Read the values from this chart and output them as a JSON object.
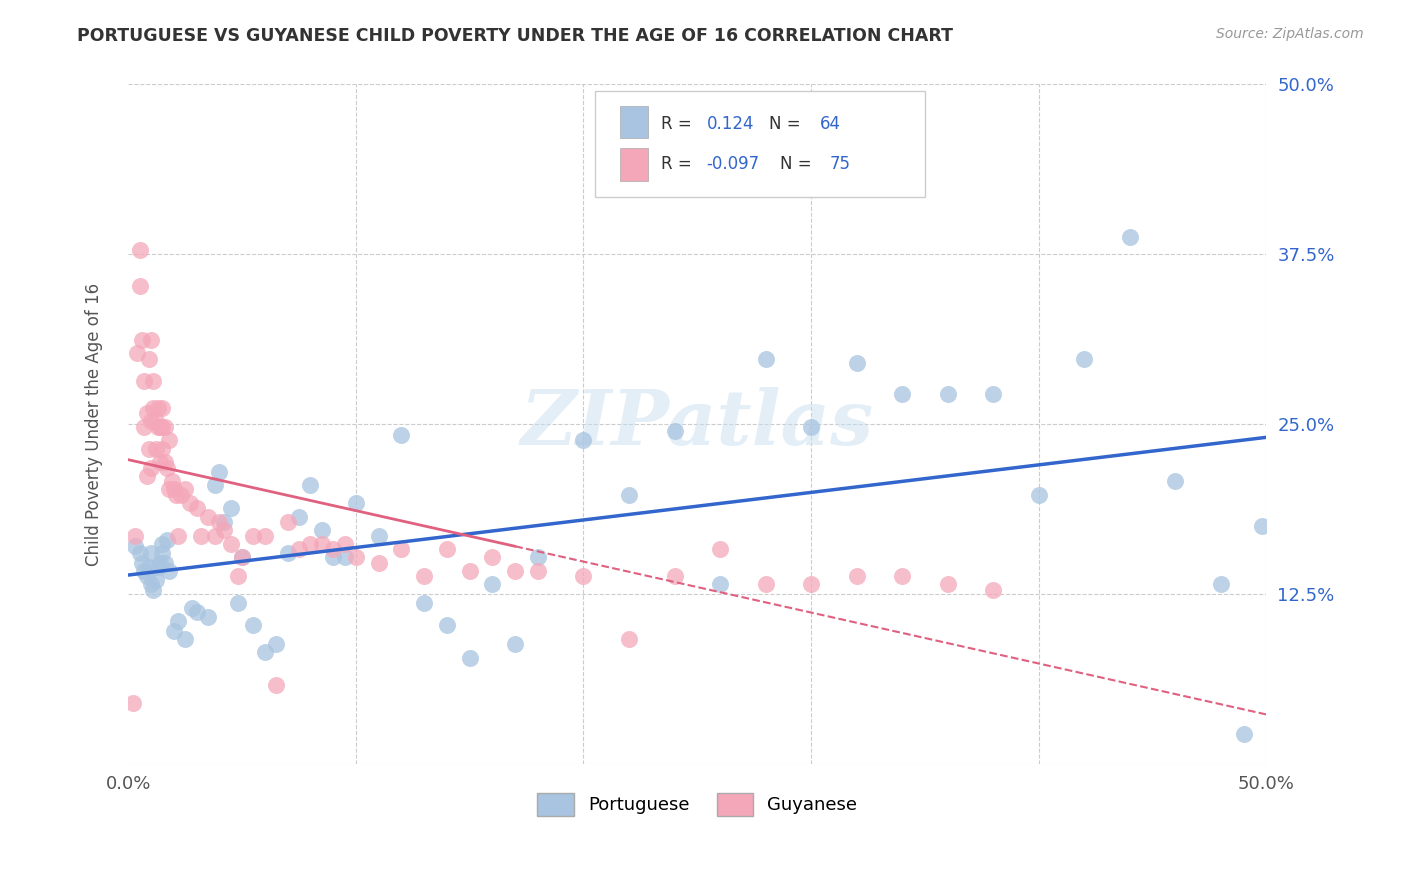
{
  "title": "PORTUGUESE VS GUYANESE CHILD POVERTY UNDER THE AGE OF 16 CORRELATION CHART",
  "source": "Source: ZipAtlas.com",
  "ylabel": "Child Poverty Under the Age of 16",
  "xlim": [
    0.0,
    0.5
  ],
  "ylim": [
    0.0,
    0.5
  ],
  "xticks": [
    0.0,
    0.1,
    0.2,
    0.3,
    0.4,
    0.5
  ],
  "yticks": [
    0.0,
    0.125,
    0.25,
    0.375,
    0.5
  ],
  "ytick_labels": [
    "",
    "12.5%",
    "25.0%",
    "37.5%",
    "50.0%"
  ],
  "portuguese_color": "#a8c4e0",
  "guyanese_color": "#f4a7b9",
  "portuguese_line_color": "#3366cc",
  "guyanese_line_color": "#e06080",
  "R_portuguese": 0.124,
  "N_portuguese": 64,
  "R_guyanese": -0.097,
  "N_guyanese": 75,
  "background_color": "#ffffff",
  "grid_color": "#cccccc",
  "watermark": "ZIPatlas",
  "portuguese_x": [
    0.003,
    0.005,
    0.006,
    0.007,
    0.008,
    0.009,
    0.01,
    0.01,
    0.011,
    0.012,
    0.013,
    0.014,
    0.015,
    0.015,
    0.016,
    0.017,
    0.018,
    0.02,
    0.022,
    0.025,
    0.028,
    0.03,
    0.035,
    0.038,
    0.04,
    0.042,
    0.045,
    0.048,
    0.05,
    0.055,
    0.06,
    0.065,
    0.07,
    0.075,
    0.08,
    0.085,
    0.09,
    0.095,
    0.1,
    0.11,
    0.12,
    0.13,
    0.14,
    0.15,
    0.16,
    0.17,
    0.18,
    0.2,
    0.22,
    0.24,
    0.26,
    0.28,
    0.3,
    0.32,
    0.34,
    0.36,
    0.38,
    0.4,
    0.42,
    0.44,
    0.46,
    0.48,
    0.49,
    0.498
  ],
  "portuguese_y": [
    0.16,
    0.155,
    0.148,
    0.142,
    0.138,
    0.145,
    0.155,
    0.132,
    0.128,
    0.135,
    0.145,
    0.148,
    0.162,
    0.155,
    0.148,
    0.165,
    0.142,
    0.098,
    0.105,
    0.092,
    0.115,
    0.112,
    0.108,
    0.205,
    0.215,
    0.178,
    0.188,
    0.118,
    0.152,
    0.102,
    0.082,
    0.088,
    0.155,
    0.182,
    0.205,
    0.172,
    0.152,
    0.152,
    0.192,
    0.168,
    0.242,
    0.118,
    0.102,
    0.078,
    0.132,
    0.088,
    0.152,
    0.238,
    0.198,
    0.245,
    0.132,
    0.298,
    0.248,
    0.295,
    0.272,
    0.272,
    0.272,
    0.198,
    0.298,
    0.388,
    0.208,
    0.132,
    0.022,
    0.175
  ],
  "guyanese_x": [
    0.002,
    0.003,
    0.004,
    0.005,
    0.005,
    0.006,
    0.007,
    0.007,
    0.008,
    0.008,
    0.009,
    0.009,
    0.01,
    0.01,
    0.01,
    0.011,
    0.011,
    0.012,
    0.012,
    0.013,
    0.013,
    0.014,
    0.014,
    0.015,
    0.015,
    0.015,
    0.016,
    0.016,
    0.017,
    0.018,
    0.018,
    0.019,
    0.02,
    0.021,
    0.022,
    0.023,
    0.025,
    0.027,
    0.03,
    0.032,
    0.035,
    0.038,
    0.04,
    0.042,
    0.045,
    0.048,
    0.05,
    0.055,
    0.06,
    0.065,
    0.07,
    0.075,
    0.08,
    0.085,
    0.09,
    0.095,
    0.1,
    0.11,
    0.12,
    0.13,
    0.14,
    0.15,
    0.16,
    0.17,
    0.18,
    0.2,
    0.22,
    0.24,
    0.26,
    0.28,
    0.3,
    0.32,
    0.34,
    0.36,
    0.38
  ],
  "guyanese_y": [
    0.045,
    0.168,
    0.302,
    0.378,
    0.352,
    0.312,
    0.282,
    0.248,
    0.258,
    0.212,
    0.232,
    0.298,
    0.218,
    0.312,
    0.252,
    0.282,
    0.262,
    0.252,
    0.232,
    0.248,
    0.262,
    0.222,
    0.248,
    0.232,
    0.248,
    0.262,
    0.222,
    0.248,
    0.218,
    0.202,
    0.238,
    0.208,
    0.202,
    0.198,
    0.168,
    0.198,
    0.202,
    0.192,
    0.188,
    0.168,
    0.182,
    0.168,
    0.178,
    0.172,
    0.162,
    0.138,
    0.152,
    0.168,
    0.168,
    0.058,
    0.178,
    0.158,
    0.162,
    0.162,
    0.158,
    0.162,
    0.152,
    0.148,
    0.158,
    0.138,
    0.158,
    0.142,
    0.152,
    0.142,
    0.142,
    0.138,
    0.092,
    0.138,
    0.158,
    0.132,
    0.132,
    0.138,
    0.138,
    0.132,
    0.128
  ]
}
